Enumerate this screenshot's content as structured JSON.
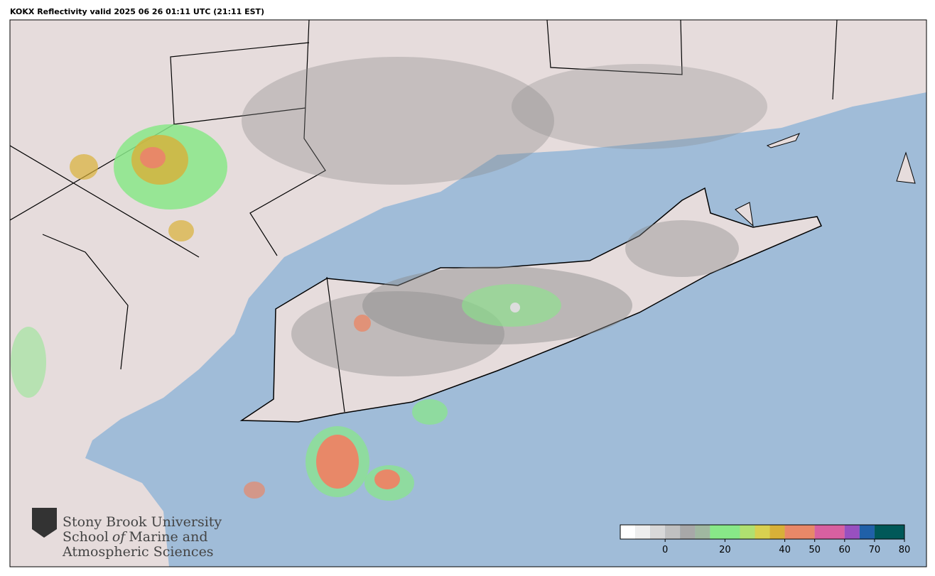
{
  "title": "KOKX Reflectivity valid 2025 06 26 01:11 UTC (21:11 EST)",
  "logo": {
    "line1": "Stony Brook University",
    "line2_a": "School",
    "line2_b": "of",
    "line2_c": "Marine and",
    "line3": "Atmospheric Sciences"
  },
  "colorbar": {
    "lim": [
      -15,
      80
    ],
    "ticks": [
      0,
      20,
      40,
      50,
      60,
      70,
      80
    ],
    "stops": [
      {
        "value": -15,
        "color": "#ffffff"
      },
      {
        "value": -10,
        "color": "#eeeeee"
      },
      {
        "value": -5,
        "color": "#d8d8d8"
      },
      {
        "value": 0,
        "color": "#c0c0c0"
      },
      {
        "value": 5,
        "color": "#a8a8a8"
      },
      {
        "value": 10,
        "color": "#a0b8a0"
      },
      {
        "value": 15,
        "color": "#88e888"
      },
      {
        "value": 25,
        "color": "#b0e070"
      },
      {
        "value": 30,
        "color": "#d8d050"
      },
      {
        "value": 35,
        "color": "#d8b038"
      },
      {
        "value": 40,
        "color": "#e88868"
      },
      {
        "value": 50,
        "color": "#d860a0"
      },
      {
        "value": 60,
        "color": "#9850c0"
      },
      {
        "value": 65,
        "color": "#2060a8"
      },
      {
        "value": 70,
        "color": "#005858"
      },
      {
        "value": 80,
        "color": "#005858"
      }
    ]
  }
}
